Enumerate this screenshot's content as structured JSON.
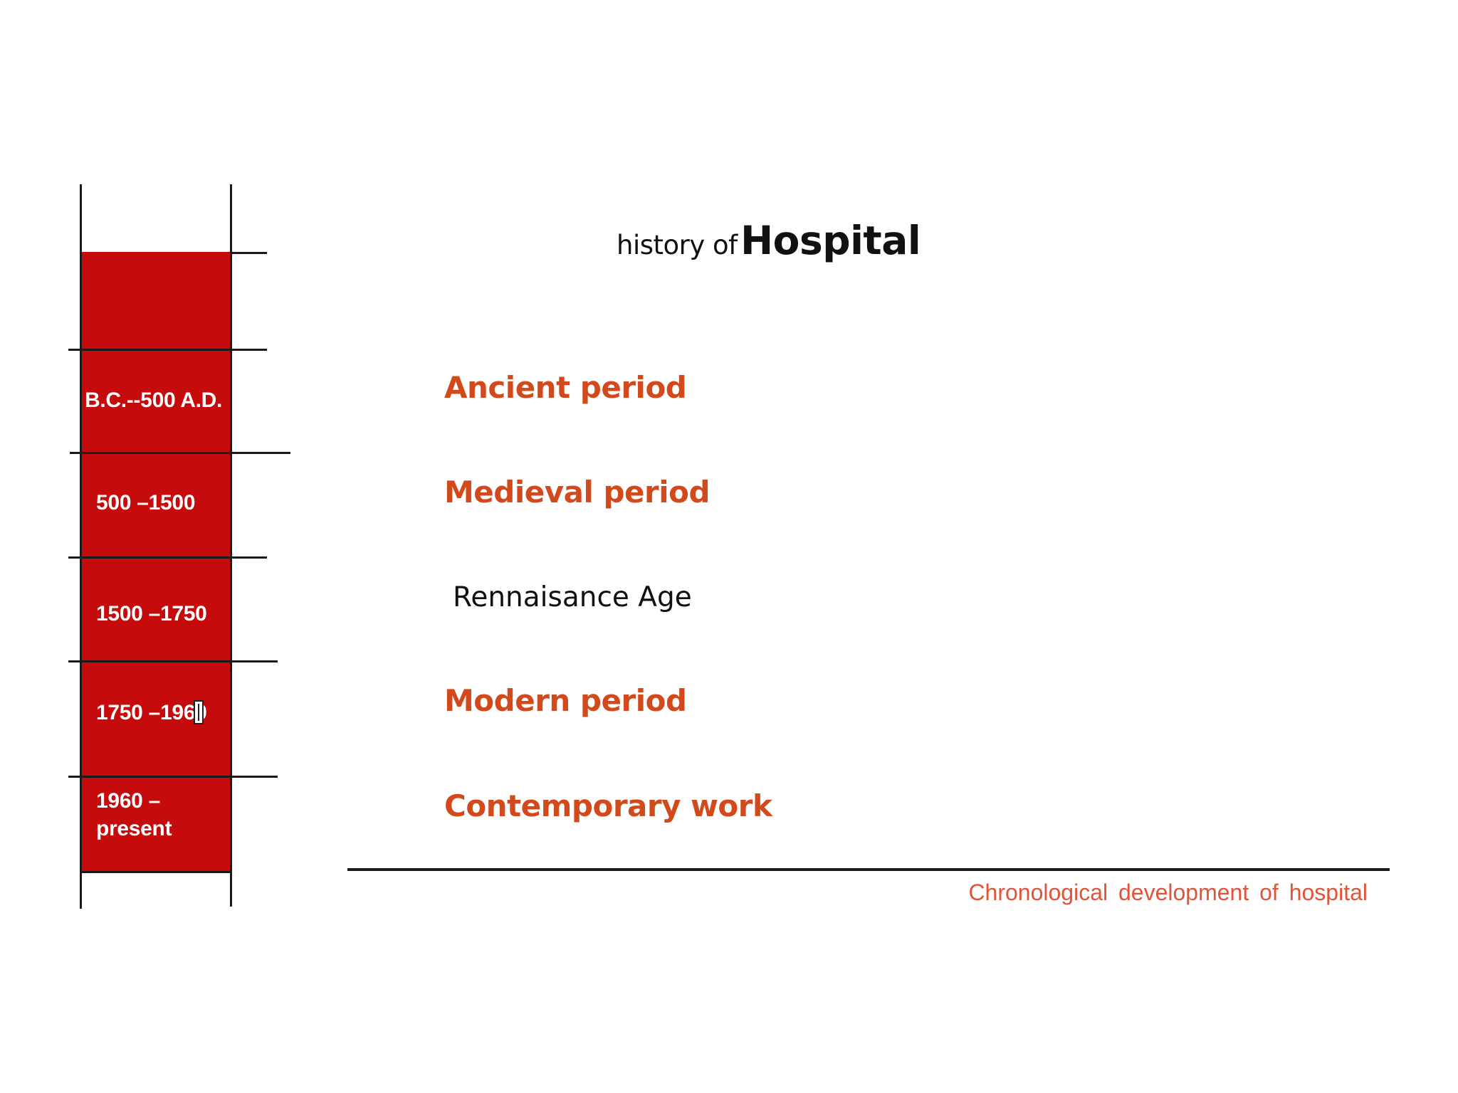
{
  "slide": {
    "title_prefix": "history of",
    "title_main": "Hospital"
  },
  "timeline": {
    "fill_color": "#c50b0b",
    "eras": [
      {
        "label": "B.C.--500 A.D."
      },
      {
        "label": "500 –1500"
      },
      {
        "label": "1500 –1750"
      },
      {
        "label": "1750 –1960"
      },
      {
        "label": "1960 – present"
      }
    ]
  },
  "periods": [
    {
      "label": "Ancient period"
    },
    {
      "label": "Medieval period"
    },
    {
      "label": "Rennaisance Age"
    },
    {
      "label": "Modern period"
    },
    {
      "label": "Contemporary work"
    }
  ],
  "caption": "Chronological development of hospital",
  "colors": {
    "period_accent": "#d2491b",
    "caption": "#e0543a"
  },
  "cursor": {
    "icon": "text-cursor-icon"
  }
}
